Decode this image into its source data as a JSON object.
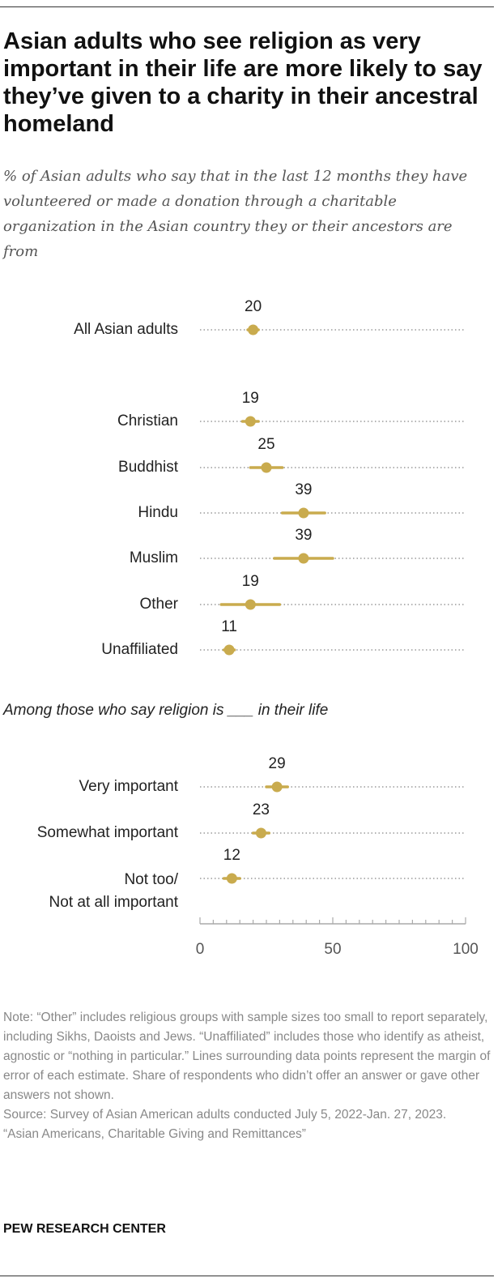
{
  "title": "Asian adults who see religion as very important in their life are more likely to say they’ve given to a charity in their ancestral homeland",
  "subtitle": "% of Asian adults who say that in the last 12 months they have volunteered or made a donation through a charitable organization in the Asian country they or their ancestors are from",
  "section_label": "Among those who say religion is ___ in their life",
  "notes": [
    "Note: “Other” includes religious groups with sample sizes too small to report separately, including Sikhs, Daoists and Jews. “Unaffiliated” includes those who identify as atheist, agnostic or “nothing in particular.” Lines surrounding data points represent the margin of error of each estimate. Share of respondents who didn’t offer an answer or gave other answers not shown.",
    "Source: Survey of Asian American adults conducted July 5, 2022-Jan. 27, 2023.",
    "“Asian Americans, Charitable Giving and Remittances”"
  ],
  "brand": "PEW RESEARCH CENTER",
  "colors": {
    "point": "#c9ab4e",
    "dotted_line": "#9a9a9a",
    "axis": "#aaaaaa"
  },
  "chart_data": {
    "type": "dot",
    "xlim": [
      0,
      100
    ],
    "xticks": [
      0,
      50,
      100
    ],
    "categories": [
      {
        "label": [
          "All Asian adults"
        ],
        "value": 20,
        "moe": 2
      },
      {
        "label": [
          "Christian"
        ],
        "value": 19,
        "moe": 3
      },
      {
        "label": [
          "Buddhist"
        ],
        "value": 25,
        "moe": 6
      },
      {
        "label": [
          "Hindu"
        ],
        "value": 39,
        "moe": 8
      },
      {
        "label": [
          "Muslim"
        ],
        "value": 39,
        "moe": 11
      },
      {
        "label": [
          "Other"
        ],
        "value": 19,
        "moe": 11
      },
      {
        "label": [
          "Unaffiliated"
        ],
        "value": 11,
        "moe": 2
      },
      {
        "label": [
          "Very important"
        ],
        "value": 29,
        "moe": 4
      },
      {
        "label": [
          "Somewhat important"
        ],
        "value": 23,
        "moe": 3
      },
      {
        "label": [
          "Not too/",
          "Not at all important"
        ],
        "value": 12,
        "moe": 3
      }
    ]
  }
}
